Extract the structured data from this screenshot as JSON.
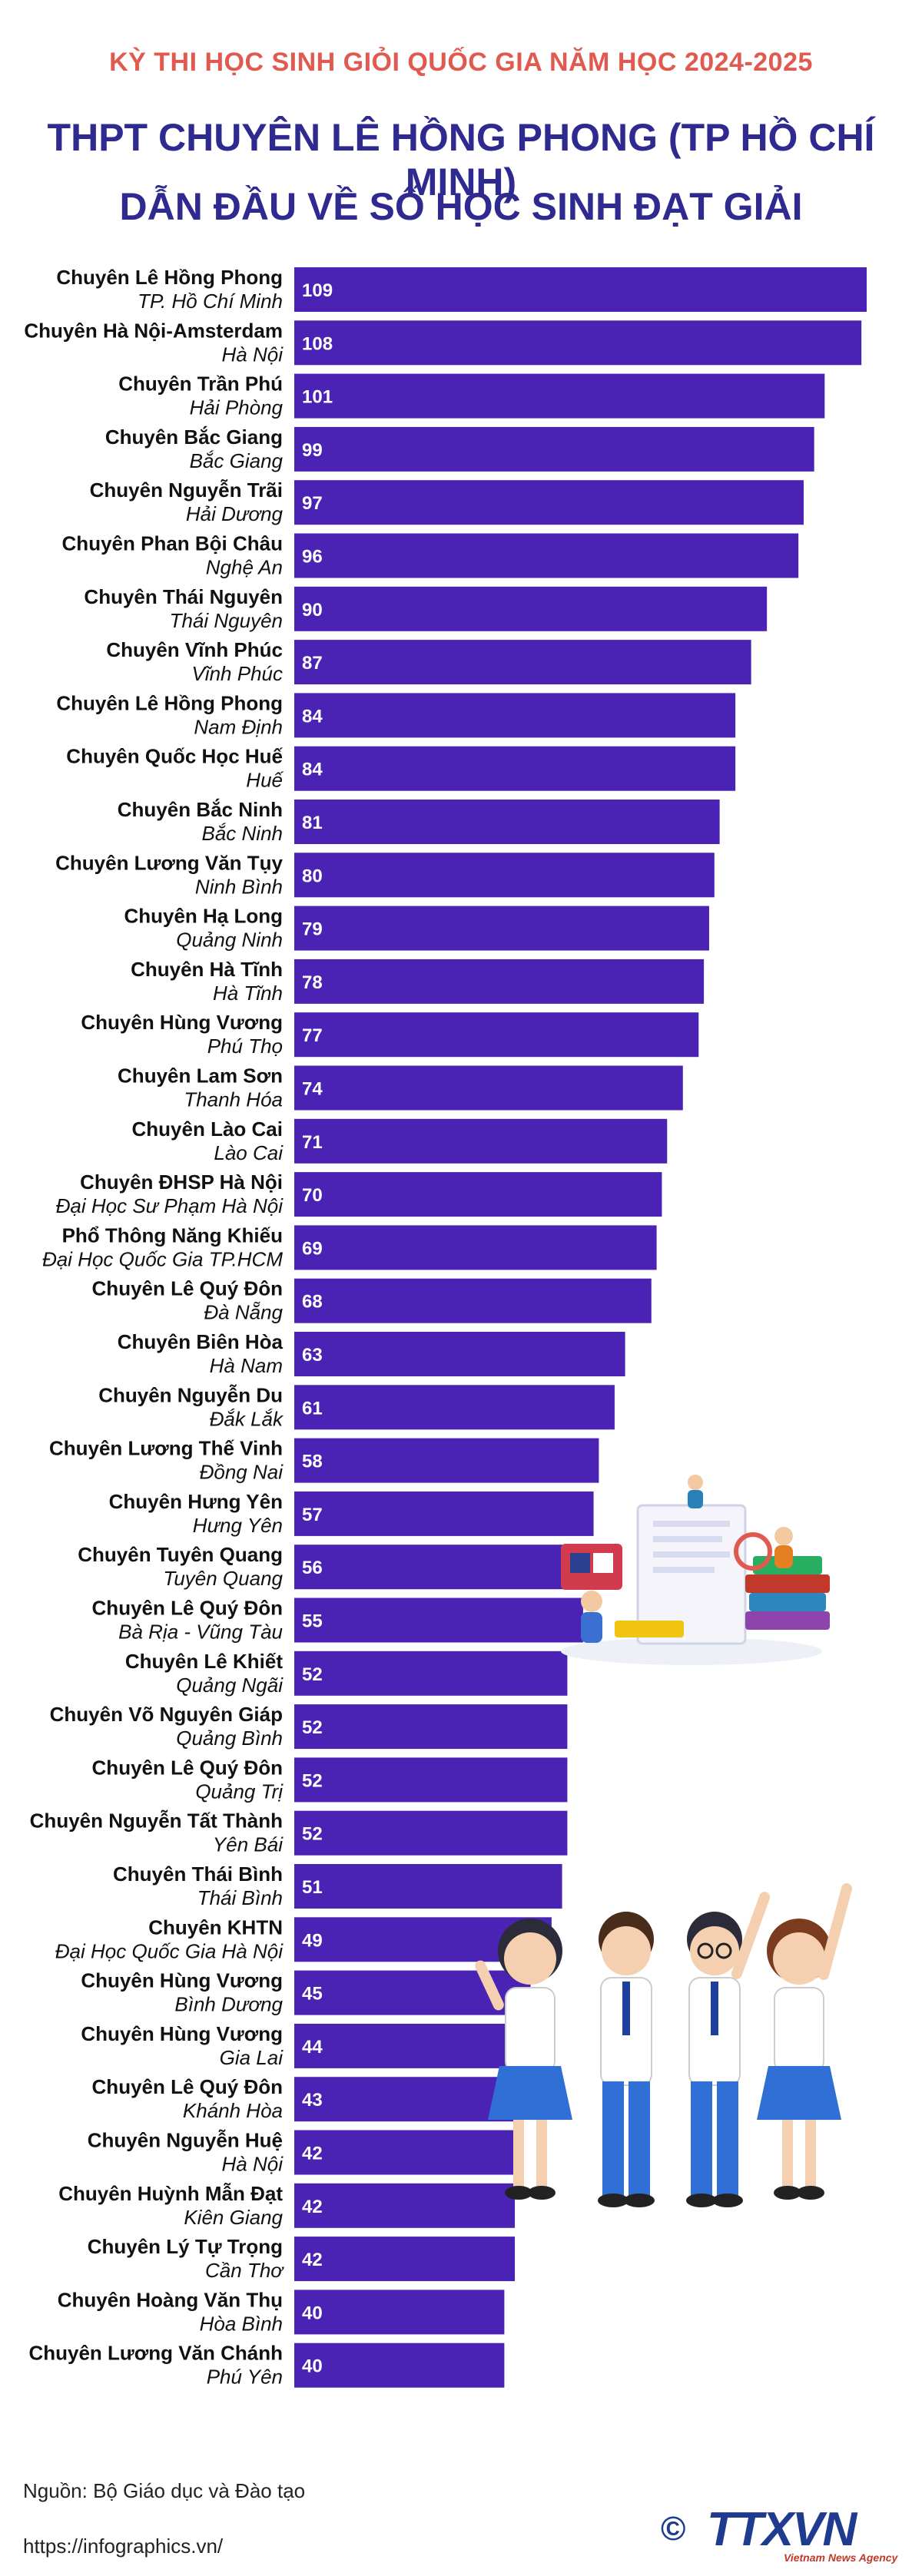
{
  "header": {
    "kicker": "KỲ THI HỌC SINH GIỎI QUỐC GIA NĂM HỌC 2024-2025",
    "title_line1": "THPT CHUYÊN LÊ HỒNG PHONG (TP HỒ CHÍ MINH)",
    "title_line2": "DẪN ĐẦU VỀ SỐ HỌC SINH ĐẠT GIẢI"
  },
  "colors": {
    "bar": "#4a23b5",
    "kicker": "#e05a4f",
    "title": "#2f2a8f"
  },
  "chart_data": {
    "type": "bar",
    "orientation": "horizontal",
    "title": "THPT CHUYÊN LÊ HỒNG PHONG (TP HỒ CHÍ MINH) DẪN ĐẦU VỀ SỐ HỌC SINH ĐẠT GIẢI",
    "xlim": [
      0,
      109
    ],
    "grid": false,
    "legend": "none",
    "bars": [
      {
        "school": "Chuyên Lê Hồng Phong",
        "place": "TP. Hồ Chí Minh",
        "value": 109
      },
      {
        "school": "Chuyên Hà Nội-Amsterdam",
        "place": "Hà Nội",
        "value": 108
      },
      {
        "school": "Chuyên Trần Phú",
        "place": "Hải Phòng",
        "value": 101
      },
      {
        "school": "Chuyên Bắc Giang",
        "place": "Bắc Giang",
        "value": 99
      },
      {
        "school": "Chuyên Nguyễn Trãi",
        "place": "Hải Dương",
        "value": 97
      },
      {
        "school": "Chuyên Phan Bội Châu",
        "place": "Nghệ An",
        "value": 96
      },
      {
        "school": "Chuyên Thái Nguyên",
        "place": "Thái Nguyên",
        "value": 90
      },
      {
        "school": "Chuyên Vĩnh Phúc",
        "place": "Vĩnh Phúc",
        "value": 87
      },
      {
        "school": "Chuyên Lê Hồng Phong",
        "place": "Nam Định",
        "value": 84
      },
      {
        "school": "Chuyên Quốc Học Huế",
        "place": "Huế",
        "value": 84
      },
      {
        "school": "Chuyên Bắc Ninh",
        "place": "Bắc Ninh",
        "value": 81
      },
      {
        "school": "Chuyên Lương Văn Tụy",
        "place": "Ninh Bình",
        "value": 80
      },
      {
        "school": "Chuyên Hạ Long",
        "place": "Quảng Ninh",
        "value": 79
      },
      {
        "school": "Chuyên Hà Tĩnh",
        "place": "Hà Tĩnh",
        "value": 78
      },
      {
        "school": "Chuyên Hùng Vương",
        "place": "Phú Thọ",
        "value": 77
      },
      {
        "school": "Chuyên Lam Sơn",
        "place": "Thanh Hóa",
        "value": 74
      },
      {
        "school": "Chuyên Lào Cai",
        "place": "Lào Cai",
        "value": 71
      },
      {
        "school": "Chuyên ĐHSP Hà Nội",
        "place": "Đại Học Sư Phạm Hà Nội",
        "value": 70
      },
      {
        "school": "Phổ Thông Năng Khiếu",
        "place": "Đại Học Quốc Gia TP.HCM",
        "value": 69
      },
      {
        "school": "Chuyên Lê Quý Đôn",
        "place": "Đà Nẵng",
        "value": 68
      },
      {
        "school": "Chuyên Biên Hòa",
        "place": "Hà Nam",
        "value": 63
      },
      {
        "school": "Chuyên Nguyễn Du",
        "place": "Đắk Lắk",
        "value": 61
      },
      {
        "school": "Chuyên Lương Thế Vinh",
        "place": "Đồng Nai",
        "value": 58
      },
      {
        "school": "Chuyên Hưng Yên",
        "place": "Hưng Yên",
        "value": 57
      },
      {
        "school": "Chuyên Tuyên Quang",
        "place": "Tuyên Quang",
        "value": 56
      },
      {
        "school": "Chuyên Lê Quý Đôn",
        "place": "Bà Rịa - Vũng Tàu",
        "value": 55
      },
      {
        "school": "Chuyên Lê Khiết",
        "place": "Quảng Ngãi",
        "value": 52
      },
      {
        "school": "Chuyên Võ Nguyên Giáp",
        "place": "Quảng Bình",
        "value": 52
      },
      {
        "school": "Chuyên Lê Quý Đôn",
        "place": "Quảng Trị",
        "value": 52
      },
      {
        "school": "Chuyên Nguyễn Tất Thành",
        "place": "Yên Bái",
        "value": 52
      },
      {
        "school": "Chuyên Thái Bình",
        "place": "Thái Bình",
        "value": 51
      },
      {
        "school": "Chuyên KHTN",
        "place": "Đại Học Quốc Gia Hà Nội",
        "value": 49
      },
      {
        "school": "Chuyên Hùng Vương",
        "place": "Bình Dương",
        "value": 45
      },
      {
        "school": "Chuyên Hùng Vương",
        "place": "Gia Lai",
        "value": 44
      },
      {
        "school": "Chuyên Lê Quý Đôn",
        "place": "Khánh Hòa",
        "value": 43
      },
      {
        "school": "Chuyên Nguyễn Huệ",
        "place": "Hà Nội",
        "value": 42
      },
      {
        "school": "Chuyên Huỳnh Mẫn Đạt",
        "place": "Kiên Giang",
        "value": 42
      },
      {
        "school": "Chuyên Lý Tự Trọng",
        "place": "Cần Thơ",
        "value": 42
      },
      {
        "school": "Chuyên Hoàng Văn Thụ",
        "place": "Hòa Bình",
        "value": 40
      },
      {
        "school": "Chuyên Lương Văn Chánh",
        "place": "Phú Yên",
        "value": 40
      }
    ]
  },
  "footer": {
    "source": "Nguồn: Bộ Giáo dục và Đào tạo",
    "url": "https://infographics.vn/",
    "logo_symbol": "©",
    "logo_text": "TTXVN",
    "logo_sub": "Vietnam News Agency"
  }
}
